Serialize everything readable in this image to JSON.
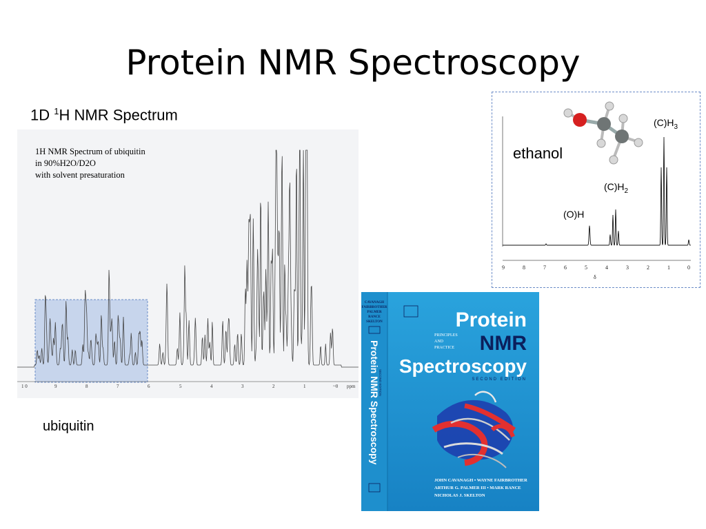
{
  "slide": {
    "title": "Protein NMR Spectroscopy",
    "subtitle_base": "1D ",
    "subtitle_sup": "1",
    "subtitle_rest": "H NMR Spectrum"
  },
  "ubiquitin_spectrum": {
    "caption_lines": [
      "1H NMR Spectrum of ubiquitin",
      "in 90%H2O/D2O",
      "with solvent presaturation"
    ],
    "axis_ticks": [
      "1 0",
      "9",
      "8",
      "7",
      "6",
      "5",
      "4",
      "3",
      "2",
      "1",
      "~0",
      "ppm"
    ],
    "label": "ubiquitin"
  },
  "ethanol_spectrum": {
    "label": "ethanol",
    "peaks": [
      {
        "base": "(C)H",
        "sub": "3"
      },
      {
        "base": "(C)H",
        "sub": "2"
      },
      {
        "base": "(O)H",
        "sub": ""
      }
    ],
    "axis_ticks": [
      "9",
      "8",
      "7",
      "6",
      "5",
      "4",
      "3",
      "2",
      "1",
      "0"
    ],
    "axis_label": "δ",
    "chart_data": {
      "type": "line",
      "x_axis": "chemical shift (ppm)",
      "xlim": [
        9,
        0
      ],
      "peaks_ppm": [
        {
          "label": "(O)H",
          "shift": 4.8,
          "relative_height": 0.18
        },
        {
          "label": "(C)H2",
          "shift": 3.6,
          "relative_height": 0.33
        },
        {
          "label": "(C)H3",
          "shift": 1.2,
          "relative_height": 1.0
        }
      ]
    }
  },
  "book_cover": {
    "spine_authors": [
      "CAVANAGH",
      "FAIRBROTHER",
      "PALMER",
      "RANCE",
      "SKELTON"
    ],
    "spine_title": "Protein NMR Spectroscopy",
    "spine_edition": "SECOND EDITION",
    "title_line1": "Protein",
    "title_line2": "NMR",
    "title_line3": "Spectroscopy",
    "edition": "SECOND EDITION",
    "tagline": [
      "PRINCIPLES",
      "AND",
      "PRACTICE"
    ],
    "authors_line1": "JOHN CAVANAGH • WAYNE FAIRBROTHER",
    "authors_line2": "ARTHUR G. PALMER III • MARK RANCE",
    "authors_line3": "NICHOLAS J. SKELTON",
    "colors": {
      "background": "#1e9ad6",
      "title": "#ffffff",
      "nmr": "#0b1f5c"
    }
  }
}
